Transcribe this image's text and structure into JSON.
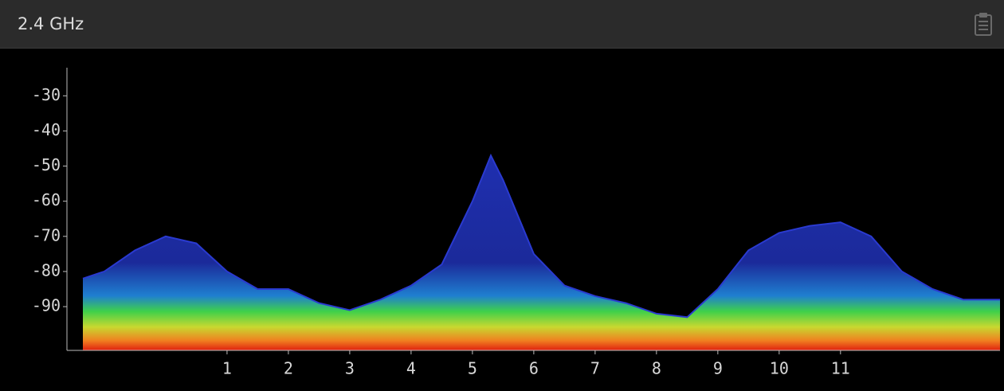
{
  "chart_data": {
    "type": "spectrum",
    "title": "2.4 GHz",
    "x": [
      -1.35,
      -1,
      -0.5,
      0,
      0.5,
      1,
      1.5,
      2,
      2.5,
      3,
      3.5,
      4,
      4.5,
      5,
      5.3,
      5.5,
      6,
      6.5,
      7,
      7.5,
      8,
      8.5,
      9,
      9.5,
      10,
      10.5,
      11,
      11.5,
      12,
      12.5,
      13,
      13.6
    ],
    "values": [
      -82,
      -80,
      -74,
      -70,
      -72,
      -80,
      -85,
      -85,
      -89,
      -91,
      -88,
      -84,
      -78,
      -60,
      -47,
      -54,
      -75,
      -84,
      -87,
      -89,
      -92,
      -93,
      -85,
      -74,
      -69,
      -67,
      -66,
      -70,
      -80,
      -85,
      -88,
      -88
    ],
    "color": "#2a3ad0",
    "xlim": [
      -1.35,
      13.6
    ],
    "xticks": [
      1,
      2,
      3,
      4,
      5,
      6,
      7,
      8,
      9,
      10,
      11
    ],
    "ylim": [
      -102,
      -22
    ],
    "yticks": [
      -90,
      -80,
      -70,
      -60,
      -50,
      -40,
      -30
    ]
  }
}
